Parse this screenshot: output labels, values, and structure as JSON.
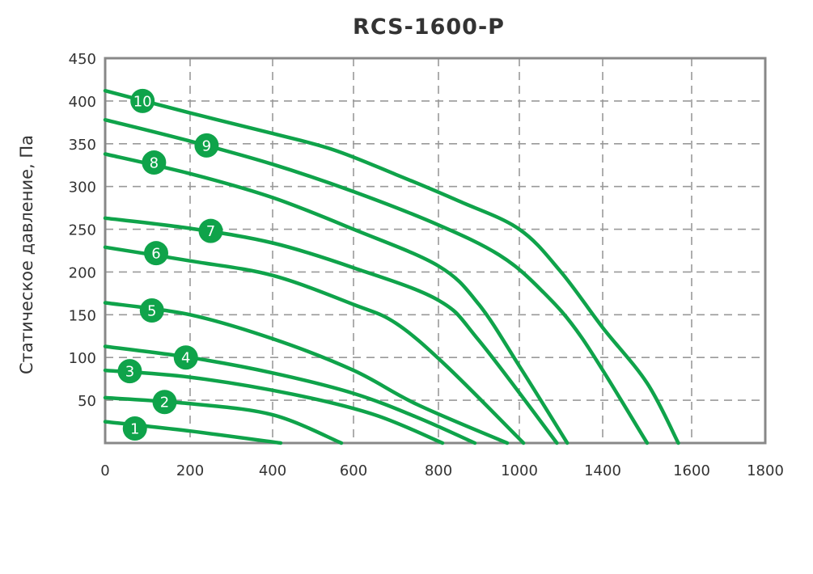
{
  "chart_data": {
    "type": "line",
    "title": "RCS-1600-P",
    "xlabel": "",
    "ylabel": "Статическое давление, Па",
    "xlim": [
      0,
      1800
    ],
    "ylim": [
      0,
      450
    ],
    "x_ticks": [
      "0",
      "200",
      "400",
      "600",
      "800",
      "1000",
      "1400",
      "1600",
      "1800"
    ],
    "y_ticks": [
      "450",
      "400",
      "350",
      "300",
      "250",
      "200",
      "150",
      "100",
      "50"
    ],
    "grid": true,
    "colors": {
      "line": "#0fa34a",
      "badge": "#0fa34a",
      "grid": "#999999",
      "frame": "#888888"
    },
    "series": [
      {
        "name": "1",
        "label_at": [
          70,
          17
        ],
        "points": [
          [
            0,
            25
          ],
          [
            200,
            14
          ],
          [
            420,
            0
          ]
        ]
      },
      {
        "name": "2",
        "label_at": [
          140,
          48
        ],
        "points": [
          [
            0,
            53
          ],
          [
            200,
            46
          ],
          [
            400,
            33
          ],
          [
            570,
            0
          ]
        ]
      },
      {
        "name": "3",
        "label_at": [
          58,
          84
        ],
        "points": [
          [
            0,
            85
          ],
          [
            200,
            77
          ],
          [
            450,
            57
          ],
          [
            650,
            33
          ],
          [
            810,
            0
          ]
        ]
      },
      {
        "name": "4",
        "label_at": [
          190,
          100
        ],
        "points": [
          [
            0,
            113
          ],
          [
            200,
            100
          ],
          [
            400,
            82
          ],
          [
            600,
            58
          ],
          [
            750,
            30
          ],
          [
            890,
            0
          ]
        ]
      },
      {
        "name": "5",
        "label_at": [
          110,
          155
        ],
        "points": [
          [
            0,
            164
          ],
          [
            200,
            150
          ],
          [
            400,
            122
          ],
          [
            600,
            85
          ],
          [
            750,
            45
          ],
          [
            970,
            0
          ]
        ]
      },
      {
        "name": "6",
        "label_at": [
          120,
          222
        ],
        "points": [
          [
            0,
            229
          ],
          [
            200,
            213
          ],
          [
            400,
            196
          ],
          [
            600,
            162
          ],
          [
            700,
            140
          ],
          [
            820,
            90
          ],
          [
            1010,
            0
          ]
        ]
      },
      {
        "name": "7",
        "label_at": [
          250,
          248
        ],
        "points": [
          [
            0,
            263
          ],
          [
            200,
            251
          ],
          [
            400,
            234
          ],
          [
            600,
            205
          ],
          [
            800,
            167
          ],
          [
            900,
            120
          ],
          [
            1090,
            0
          ]
        ]
      },
      {
        "name": "8",
        "label_at": [
          115,
          328
        ],
        "points": [
          [
            0,
            338
          ],
          [
            200,
            315
          ],
          [
            400,
            287
          ],
          [
            600,
            250
          ],
          [
            800,
            207
          ],
          [
            900,
            162
          ],
          [
            1000,
            90
          ],
          [
            1115,
            0
          ]
        ]
      },
      {
        "name": "9",
        "label_at": [
          240,
          348
        ],
        "points": [
          [
            0,
            378
          ],
          [
            200,
            353
          ],
          [
            400,
            326
          ],
          [
            600,
            294
          ],
          [
            800,
            255
          ],
          [
            950,
            220
          ],
          [
            1050,
            180
          ],
          [
            1150,
            123
          ],
          [
            1300,
            0
          ]
        ]
      },
      {
        "name": "10",
        "label_at": [
          88,
          400
        ],
        "points": [
          [
            0,
            412
          ],
          [
            200,
            386
          ],
          [
            400,
            362
          ],
          [
            550,
            343
          ],
          [
            700,
            314
          ],
          [
            850,
            283
          ],
          [
            1000,
            250
          ],
          [
            1100,
            200
          ],
          [
            1200,
            135
          ],
          [
            1300,
            70
          ],
          [
            1370,
            0
          ]
        ]
      }
    ]
  }
}
